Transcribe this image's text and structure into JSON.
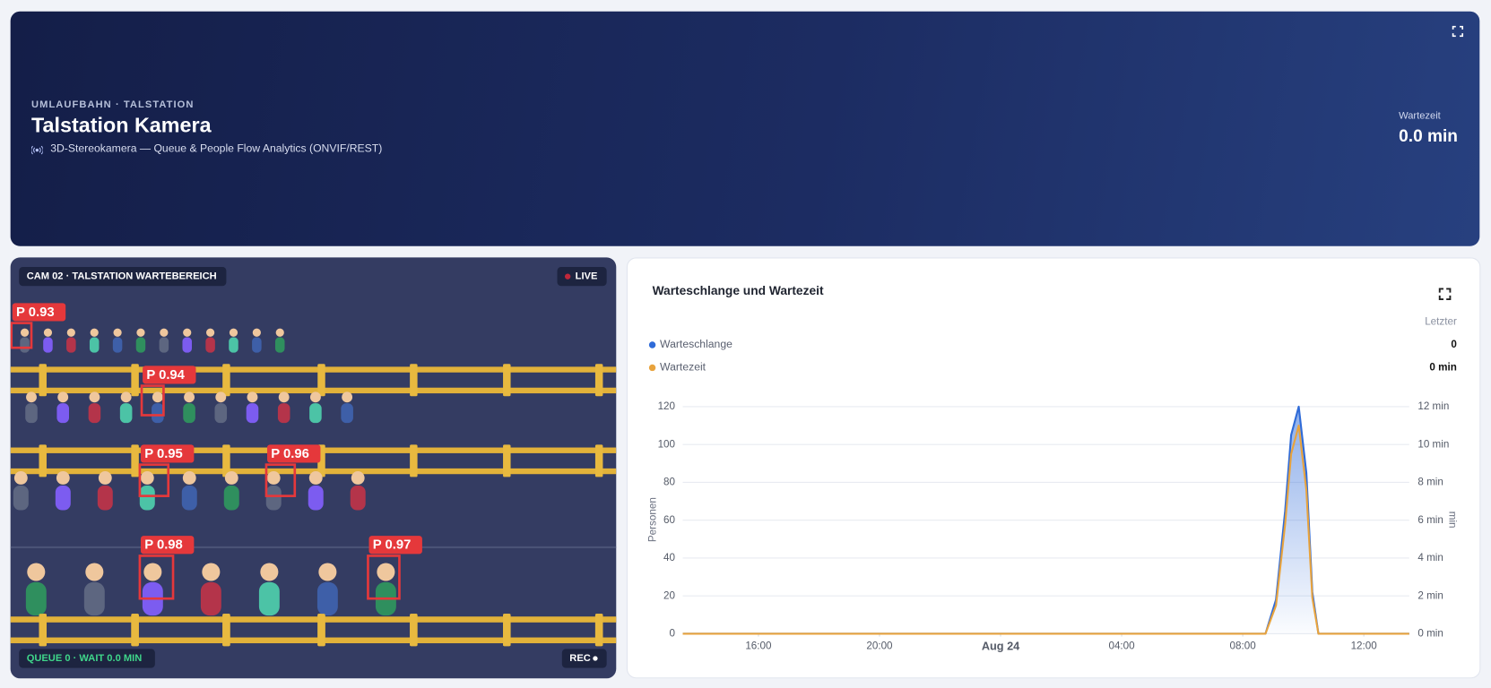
{
  "header": {
    "eyebrow": "UMLAUFBAHN · TALSTATION",
    "title": "Talstation Kamera",
    "subtitle": "3D-Stereokamera — Queue & People Flow Analytics (ONVIF/REST)",
    "wait_label": "Wartezeit",
    "wait_value": "0.0 min"
  },
  "camera": {
    "label": "CAM 02 · TALSTATION WARTEBEREICH",
    "live": "LIVE",
    "detections": [
      "P 0.93",
      "P 0.94",
      "P 0.95",
      "P 0.96",
      "P 0.98",
      "P 0.97"
    ],
    "status": "QUEUE 0 · WAIT 0.0 MIN",
    "rec": "REC"
  },
  "chart_data": {
    "type": "line",
    "title": "Warteschlange und Wartezeit",
    "legend_header": "Letzter",
    "ylabel": "Personen",
    "y2label": "min",
    "x": [
      -10.5,
      -8,
      -4,
      0,
      4,
      8,
      8.75,
      9.1,
      9.4,
      9.6,
      9.85,
      10.1,
      10.3,
      10.5,
      11,
      12,
      13.5
    ],
    "xlim": [
      -10.5,
      13.5
    ],
    "xticks": [
      {
        "value": -8,
        "label": "16:00"
      },
      {
        "value": -4,
        "label": "20:00"
      },
      {
        "value": 0,
        "label": "Aug 24"
      },
      {
        "value": 4,
        "label": "04:00"
      },
      {
        "value": 8,
        "label": "08:00"
      },
      {
        "value": 12,
        "label": "12:00"
      }
    ],
    "ylim": [
      0,
      120
    ],
    "yticks": [
      0,
      20,
      40,
      60,
      80,
      100,
      120
    ],
    "y2lim": [
      0,
      12
    ],
    "y2ticks": [
      {
        "value": 0,
        "label": "0 min"
      },
      {
        "value": 2,
        "label": "2 min"
      },
      {
        "value": 4,
        "label": "4 min"
      },
      {
        "value": 6,
        "label": "6 min"
      },
      {
        "value": 8,
        "label": "8 min"
      },
      {
        "value": 10,
        "label": "10 min"
      },
      {
        "value": 12,
        "label": "12 min"
      }
    ],
    "grid": true,
    "series": [
      {
        "name": "Warteschlange",
        "color": "#2f6bd8",
        "area": true,
        "last": "0",
        "values": [
          0,
          0,
          0,
          0,
          0,
          0,
          0,
          18,
          65,
          105,
          120,
          85,
          22,
          0,
          0,
          0,
          0
        ]
      },
      {
        "name": "Wartezeit",
        "color": "#e8a33d",
        "axis": "y2",
        "last": "0 min",
        "values": [
          0,
          0,
          0,
          0,
          0,
          0,
          0,
          1.5,
          5.8,
          9.5,
          11,
          7.6,
          1.9,
          0,
          0,
          0,
          0
        ]
      }
    ]
  }
}
